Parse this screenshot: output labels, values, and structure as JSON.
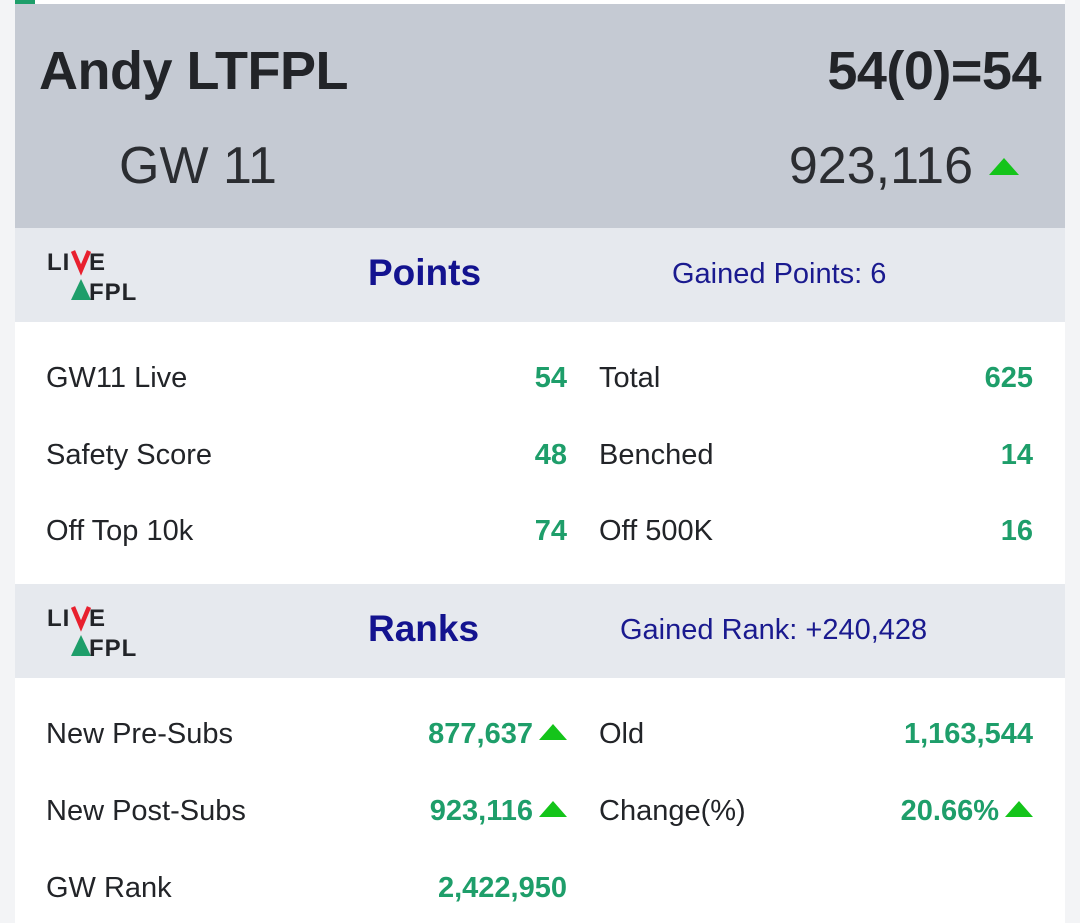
{
  "header": {
    "team_name": "Andy LTFPL",
    "score": "54(0)=54",
    "gw_label": "GW 11",
    "overall_rank": "923,116",
    "rank_trend_icon": "arrow-up-icon"
  },
  "logo": {
    "line1": "LIVE",
    "line2": "FPL"
  },
  "points": {
    "title": "Points",
    "gained": "Gained Points: 6",
    "rows": [
      {
        "left_label": "GW11 Live",
        "left_value": "54",
        "right_label": "Total",
        "right_value": "625"
      },
      {
        "left_label": "Safety Score",
        "left_value": "48",
        "right_label": "Benched",
        "right_value": "14"
      },
      {
        "left_label": "Off Top 10k",
        "left_value": "74",
        "right_label": "Off 500K",
        "right_value": "16"
      }
    ]
  },
  "ranks": {
    "title": "Ranks",
    "gained": "Gained Rank: +240,428",
    "rows": [
      {
        "left_label": "New Pre-Subs",
        "left_value": "877,637",
        "right_label": "Old",
        "right_value": "1,163,544"
      },
      {
        "left_label": "New Post-Subs",
        "left_value": "923,116",
        "right_label": "Change(%)",
        "right_value": "20.66%"
      },
      {
        "left_label": "GW Rank",
        "left_value": "2,422,950"
      }
    ]
  },
  "colors": {
    "header_bg": "#c5cad3",
    "section_bg": "#e6e9ee",
    "title_blue": "#13138f",
    "value_green": "#1e9e6a",
    "arrow_green": "#14c41a",
    "logo_red": "#e8202e"
  }
}
